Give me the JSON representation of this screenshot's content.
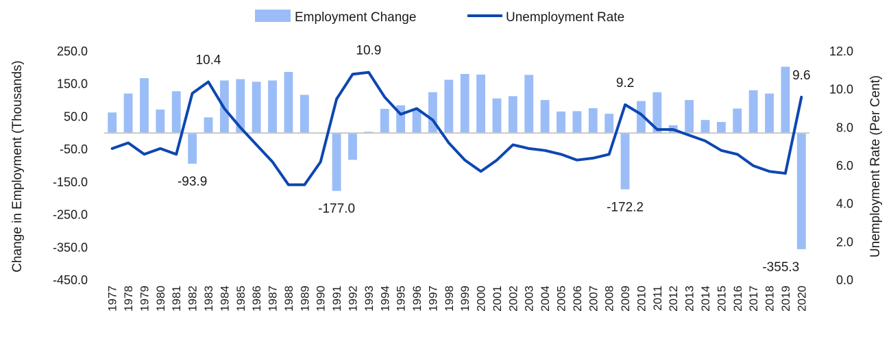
{
  "chart_data": {
    "type": "bar+line",
    "title": "",
    "legend": {
      "position": "top-center",
      "items": [
        {
          "label": "Employment Change",
          "kind": "bar",
          "color": "#9bbdf7"
        },
        {
          "label": "Unemployment Rate",
          "kind": "line",
          "color": "#0d47b0"
        }
      ]
    },
    "categories": [
      "1977",
      "1978",
      "1979",
      "1980",
      "1981",
      "1982",
      "1983",
      "1984",
      "1985",
      "1986",
      "1987",
      "1988",
      "1989",
      "1990",
      "1991",
      "1992",
      "1993",
      "1994",
      "1995",
      "1996",
      "1997",
      "1998",
      "1999",
      "2000",
      "2001",
      "2002",
      "2003",
      "2004",
      "2005",
      "2006",
      "2007",
      "2008",
      "2009",
      "2010",
      "2011",
      "2012",
      "2013",
      "2014",
      "2015",
      "2016",
      "2017",
      "2018",
      "2019",
      "2020"
    ],
    "series": [
      {
        "name": "Employment Change",
        "type": "bar",
        "axis": "left",
        "color": "#9bbdf7",
        "values": [
          63,
          121,
          168,
          72,
          128,
          -93.9,
          48,
          161,
          165,
          157,
          161,
          187,
          117,
          -2,
          -177.0,
          -82,
          4,
          74,
          85,
          72,
          125,
          163,
          181,
          179,
          106,
          113,
          178,
          101,
          66,
          67,
          76,
          59,
          -172.2,
          98,
          125,
          24,
          101,
          40,
          34,
          75,
          131,
          121,
          203,
          -355.3
        ]
      },
      {
        "name": "Unemployment Rate",
        "type": "line",
        "axis": "right",
        "color": "#0d47b0",
        "values": [
          6.9,
          7.2,
          6.6,
          6.9,
          6.6,
          9.8,
          10.4,
          9.0,
          8.0,
          7.1,
          6.2,
          5.0,
          5.0,
          6.2,
          9.5,
          10.8,
          10.9,
          9.6,
          8.7,
          9.0,
          8.4,
          7.2,
          6.3,
          5.7,
          6.3,
          7.1,
          6.9,
          6.8,
          6.6,
          6.3,
          6.4,
          6.6,
          9.2,
          8.7,
          7.9,
          7.9,
          7.6,
          7.3,
          6.8,
          6.6,
          6.0,
          5.7,
          5.6,
          9.6
        ]
      }
    ],
    "left_axis": {
      "label": "Change in Employment (Thousands)",
      "ylim": [
        -450,
        250
      ],
      "ticks": [
        "250.0",
        "150.0",
        "50.0",
        "-50.0",
        "-150.0",
        "-250.0",
        "-350.0",
        "-450.0"
      ]
    },
    "right_axis": {
      "label": "Unemployment Rate (Per Cent)",
      "ylim": [
        0,
        12
      ],
      "ticks": [
        "12.0",
        "10.0",
        "8.0",
        "6.0",
        "4.0",
        "2.0",
        "0.0"
      ]
    },
    "grid": false,
    "annotations": [
      {
        "text": "10.4",
        "category": "1983",
        "series": "Unemployment Rate",
        "placement": "above"
      },
      {
        "text": "10.9",
        "category": "1993",
        "series": "Unemployment Rate",
        "placement": "above"
      },
      {
        "text": "9.2",
        "category": "2009",
        "series": "Unemployment Rate",
        "placement": "above"
      },
      {
        "text": "9.6",
        "category": "2020",
        "series": "Unemployment Rate",
        "placement": "above"
      },
      {
        "text": "-93.9",
        "category": "1982",
        "series": "Employment Change",
        "placement": "below"
      },
      {
        "text": "-177.0",
        "category": "1991",
        "series": "Employment Change",
        "placement": "below"
      },
      {
        "text": "-172.2",
        "category": "2009",
        "series": "Employment Change",
        "placement": "below"
      },
      {
        "text": "-355.3",
        "category": "2020",
        "series": "Employment Change",
        "placement": "below"
      }
    ]
  }
}
